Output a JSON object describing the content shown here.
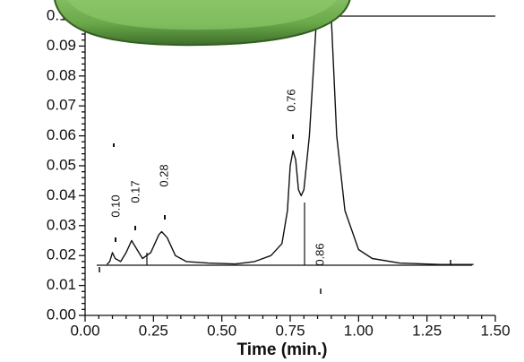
{
  "chart_data": {
    "type": "line",
    "xlabel": "Time (min.)",
    "x": [
      0.08,
      0.09,
      0.1,
      0.11,
      0.13,
      0.15,
      0.17,
      0.19,
      0.21,
      0.24,
      0.27,
      0.28,
      0.3,
      0.33,
      0.37,
      0.45,
      0.55,
      0.62,
      0.68,
      0.72,
      0.74,
      0.75,
      0.76,
      0.77,
      0.78,
      0.79,
      0.8,
      0.82,
      0.84,
      0.86,
      0.88,
      0.9,
      0.92,
      0.95,
      1.0,
      1.05,
      1.15,
      1.3,
      1.42
    ],
    "series": [
      {
        "color": "#111111",
        "values": [
          0.017,
          0.018,
          0.021,
          0.019,
          0.018,
          0.021,
          0.025,
          0.022,
          0.019,
          0.021,
          0.027,
          0.028,
          0.026,
          0.02,
          0.018,
          0.0175,
          0.0172,
          0.018,
          0.02,
          0.024,
          0.035,
          0.05,
          0.055,
          0.052,
          0.042,
          0.04,
          0.042,
          0.06,
          0.09,
          0.12,
          0.12,
          0.1,
          0.06,
          0.035,
          0.022,
          0.019,
          0.0175,
          0.017,
          0.017
        ]
      }
    ],
    "annotations": [
      "0.10",
      "0.17",
      "0.28",
      "0.76",
      "0.86"
    ],
    "xlim": [
      0,
      1.5
    ],
    "xticks": [
      {
        "value": 0,
        "label": "0.00"
      },
      {
        "value": 0.25,
        "label": "0.25"
      },
      {
        "value": 0.5,
        "label": "0.50"
      },
      {
        "value": 0.75,
        "label": "0.75"
      },
      {
        "value": 1.0,
        "label": "1.00"
      },
      {
        "value": 1.25,
        "label": "1.25"
      },
      {
        "value": 1.5,
        "label": "1.50"
      }
    ],
    "ylim": [
      0,
      0.1
    ],
    "yticks": [
      {
        "value": 0,
        "label": "0.00"
      },
      {
        "value": 0.01,
        "label": "0.01"
      },
      {
        "value": 0.02,
        "label": "0.02"
      },
      {
        "value": 0.03,
        "label": "0.03"
      },
      {
        "value": 0.04,
        "label": "0.04"
      },
      {
        "value": 0.05,
        "label": "0.05"
      },
      {
        "value": 0.06,
        "label": "0.06"
      },
      {
        "value": 0.07,
        "label": "0.07"
      },
      {
        "value": 0.08,
        "label": "0.08"
      },
      {
        "value": 0.09,
        "label": "0.09"
      },
      {
        "value": 0.1,
        "label": "0.10"
      }
    ]
  }
}
